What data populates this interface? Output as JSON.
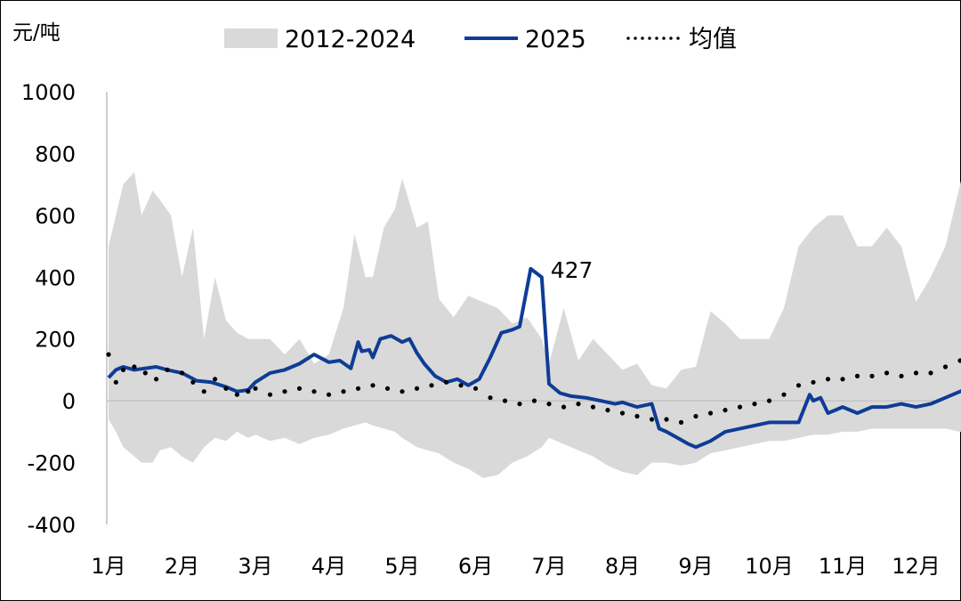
{
  "chart_data": {
    "type": "line",
    "y_unit": "元/吨",
    "ylim": [
      -400,
      1000
    ],
    "y_ticks": [
      "1000",
      "800",
      "600",
      "400",
      "200",
      "0",
      "-200",
      "-400"
    ],
    "x_ticks": [
      "1月",
      "2月",
      "3月",
      "4月",
      "5月",
      "6月",
      "7月",
      "8月",
      "9月",
      "10月",
      "11月",
      "12月"
    ],
    "legend_position": "top",
    "grid": false,
    "series": [
      {
        "name": "2012-2024",
        "style": "band",
        "color": "#d9d9d9",
        "x": [
          1.0,
          1.1,
          1.2,
          1.35,
          1.45,
          1.6,
          1.7,
          1.85,
          2.0,
          2.15,
          2.3,
          2.45,
          2.6,
          2.75,
          2.9,
          3.0,
          3.2,
          3.4,
          3.6,
          3.8,
          4.0,
          4.2,
          4.35,
          4.5,
          4.6,
          4.75,
          4.9,
          5.0,
          5.2,
          5.35,
          5.5,
          5.7,
          5.9,
          6.1,
          6.3,
          6.5,
          6.7,
          6.9,
          7.0,
          7.2,
          7.4,
          7.6,
          7.8,
          8.0,
          8.2,
          8.4,
          8.6,
          8.8,
          9.0,
          9.2,
          9.4,
          9.6,
          9.8,
          10.0,
          10.2,
          10.4,
          10.6,
          10.8,
          11.0,
          11.2,
          11.4,
          11.6,
          11.8,
          12.0,
          12.2,
          12.4,
          12.6,
          12.8
        ],
        "upper": [
          500,
          600,
          700,
          740,
          600,
          680,
          650,
          600,
          400,
          560,
          200,
          400,
          260,
          220,
          200,
          200,
          200,
          150,
          200,
          120,
          150,
          300,
          540,
          400,
          400,
          560,
          620,
          720,
          560,
          580,
          330,
          270,
          340,
          320,
          300,
          250,
          270,
          200,
          120,
          300,
          130,
          200,
          150,
          100,
          120,
          50,
          40,
          100,
          110,
          290,
          250,
          200,
          200,
          200,
          300,
          500,
          560,
          600,
          600,
          500,
          500,
          560,
          500,
          320,
          400,
          500,
          700,
          890
        ],
        "lower": [
          -60,
          -100,
          -150,
          -180,
          -200,
          -200,
          -160,
          -150,
          -180,
          -200,
          -150,
          -120,
          -130,
          -100,
          -120,
          -110,
          -130,
          -120,
          -140,
          -120,
          -110,
          -90,
          -80,
          -70,
          -80,
          -90,
          -100,
          -120,
          -150,
          -160,
          -170,
          -200,
          -220,
          -250,
          -240,
          -200,
          -180,
          -150,
          -120,
          -140,
          -160,
          -180,
          -210,
          -230,
          -240,
          -200,
          -200,
          -210,
          -200,
          -170,
          -160,
          -150,
          -140,
          -130,
          -130,
          -120,
          -110,
          -110,
          -100,
          -100,
          -90,
          -90,
          -90,
          -90,
          -90,
          -90,
          -100,
          -110
        ]
      },
      {
        "name": "2025",
        "style": "line",
        "color": "#0e3c96",
        "x": [
          1.0,
          1.1,
          1.2,
          1.35,
          1.5,
          1.65,
          1.8,
          2.0,
          2.2,
          2.4,
          2.6,
          2.75,
          2.9,
          3.0,
          3.2,
          3.4,
          3.6,
          3.8,
          4.0,
          4.15,
          4.3,
          4.4,
          4.45,
          4.55,
          4.6,
          4.7,
          4.85,
          5.0,
          5.1,
          5.2,
          5.3,
          5.45,
          5.6,
          5.75,
          5.9,
          6.05,
          6.2,
          6.35,
          6.5,
          6.6,
          6.75,
          6.9,
          7.0,
          7.15,
          7.3,
          7.5,
          7.7,
          7.9,
          8.0,
          8.2,
          8.4,
          8.5,
          8.6,
          8.75,
          8.9,
          9.0,
          9.2,
          9.4,
          9.6,
          9.8,
          10.0,
          10.2,
          10.4,
          10.55,
          10.6,
          10.7,
          10.8,
          10.9,
          11.0,
          11.2,
          11.4,
          11.6,
          11.8,
          12.0,
          12.2,
          12.4,
          12.6,
          12.8
        ],
        "values": [
          75,
          100,
          110,
          100,
          105,
          110,
          100,
          90,
          65,
          60,
          45,
          30,
          35,
          60,
          90,
          100,
          120,
          150,
          125,
          130,
          105,
          190,
          160,
          165,
          140,
          200,
          210,
          190,
          200,
          155,
          120,
          80,
          60,
          70,
          50,
          70,
          140,
          220,
          230,
          240,
          427,
          400,
          55,
          25,
          15,
          10,
          0,
          -10,
          -5,
          -20,
          -10,
          -90,
          -100,
          -120,
          -140,
          -150,
          -130,
          -100,
          -90,
          -80,
          -70,
          -70,
          -70,
          20,
          0,
          10,
          -40,
          -30,
          -20,
          -40,
          -20,
          -20,
          -10,
          -20,
          -10,
          10,
          30,
          50
        ]
      },
      {
        "name": "均值",
        "style": "dotted",
        "color": "#000000",
        "x": [
          1.0,
          1.1,
          1.2,
          1.35,
          1.5,
          1.65,
          1.8,
          2.0,
          2.15,
          2.3,
          2.45,
          2.6,
          2.75,
          2.9,
          3.0,
          3.2,
          3.4,
          3.6,
          3.8,
          4.0,
          4.2,
          4.4,
          4.6,
          4.8,
          5.0,
          5.2,
          5.4,
          5.6,
          5.8,
          6.0,
          6.2,
          6.4,
          6.6,
          6.8,
          7.0,
          7.2,
          7.4,
          7.6,
          7.8,
          8.0,
          8.2,
          8.4,
          8.6,
          8.8,
          9.0,
          9.2,
          9.4,
          9.6,
          9.8,
          10.0,
          10.2,
          10.4,
          10.6,
          10.8,
          11.0,
          11.2,
          11.4,
          11.6,
          11.8,
          12.0,
          12.2,
          12.4,
          12.6,
          12.8
        ],
        "values": [
          150,
          60,
          100,
          110,
          90,
          70,
          100,
          90,
          60,
          30,
          70,
          40,
          20,
          30,
          40,
          20,
          30,
          40,
          30,
          20,
          30,
          40,
          50,
          40,
          30,
          40,
          50,
          60,
          50,
          40,
          10,
          0,
          -10,
          0,
          -10,
          -20,
          -10,
          -20,
          -30,
          -40,
          -50,
          -60,
          -60,
          -70,
          -50,
          -40,
          -30,
          -20,
          -10,
          0,
          20,
          50,
          60,
          70,
          70,
          80,
          80,
          90,
          80,
          90,
          90,
          110,
          130,
          140
        ]
      }
    ],
    "annotations": [
      {
        "text": "427",
        "x": 6.9,
        "y": 427
      }
    ]
  }
}
